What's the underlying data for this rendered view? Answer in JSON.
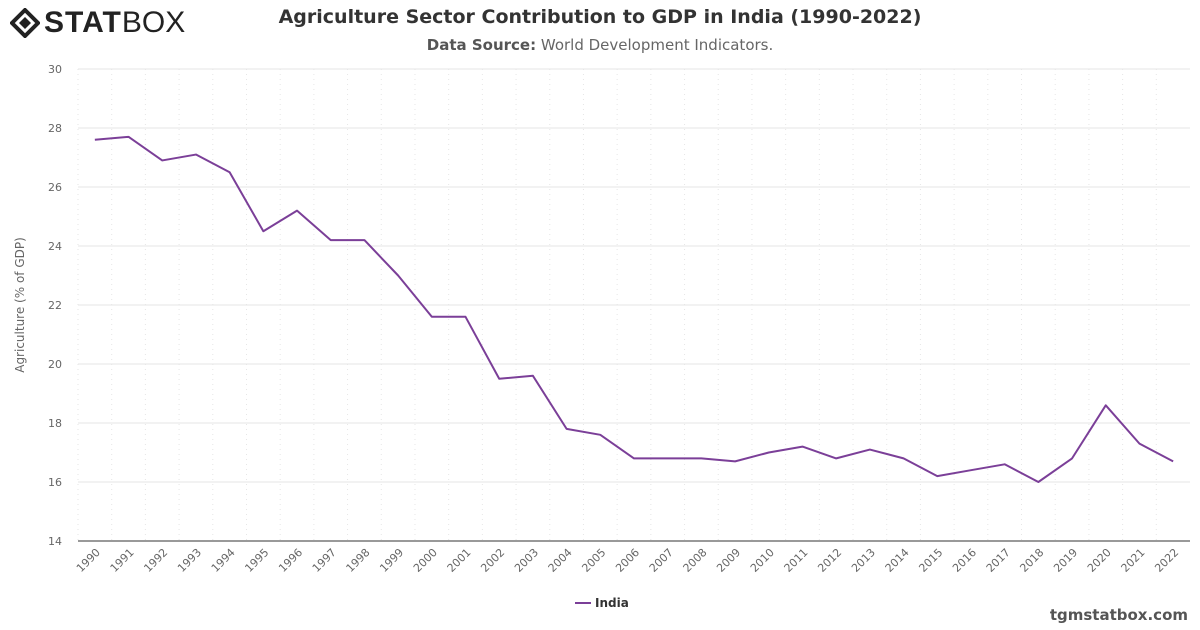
{
  "brand": {
    "logo_text_bold": "STAT",
    "logo_text_light": "BOX",
    "footer": "tgmstatbox.com"
  },
  "chart_data": {
    "type": "line",
    "title": "Agriculture Sector Contribution to GDP in India (1990-2022)",
    "subtitle_label": "Data Source:",
    "subtitle_value": "World Development Indicators.",
    "ylabel": "Agriculture (% of GDP)",
    "xlabel": "",
    "ylim": [
      14,
      30
    ],
    "yticks": [
      14,
      16,
      18,
      20,
      22,
      24,
      26,
      28,
      30
    ],
    "grid": true,
    "legend_placement": "bottom-center",
    "categories": [
      "1990",
      "1991",
      "1992",
      "1993",
      "1994",
      "1995",
      "1996",
      "1997",
      "1998",
      "1999",
      "2000",
      "2001",
      "2002",
      "2003",
      "2004",
      "2005",
      "2006",
      "2007",
      "2008",
      "2009",
      "2010",
      "2011",
      "2012",
      "2013",
      "2014",
      "2015",
      "2016",
      "2017",
      "2018",
      "2019",
      "2020",
      "2021",
      "2022"
    ],
    "series": [
      {
        "name": "India",
        "color": "#7b3f98",
        "values": [
          27.6,
          27.7,
          26.9,
          27.1,
          26.5,
          24.5,
          25.2,
          24.2,
          24.2,
          23.0,
          21.6,
          21.6,
          19.5,
          19.6,
          17.8,
          17.6,
          16.8,
          16.8,
          16.8,
          16.7,
          17.0,
          17.2,
          16.8,
          17.1,
          16.8,
          16.2,
          16.4,
          16.6,
          16.0,
          16.8,
          18.6,
          17.3,
          16.7
        ]
      }
    ]
  }
}
